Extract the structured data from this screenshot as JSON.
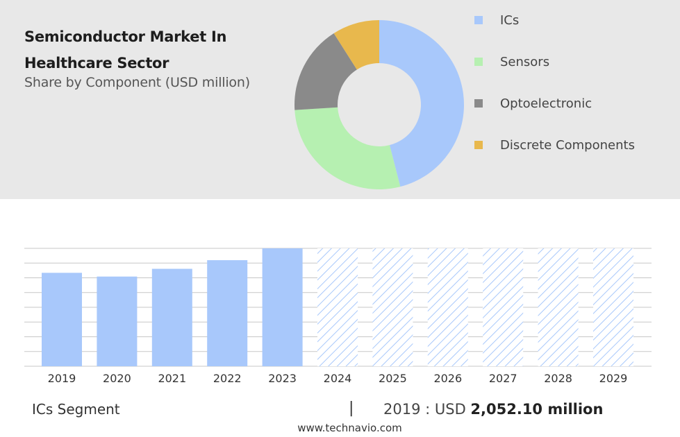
{
  "header": {
    "title_line1": "Semiconductor Market In",
    "title_line2": "Healthcare Sector",
    "subtitle": "Share by Component (USD million)"
  },
  "colors": {
    "ics": "#a8c8fb",
    "sensors": "#b6f0b1",
    "optoelectronic": "#8a8a8a",
    "discrete": "#e8b84d",
    "forecast_hatch": "#a8c8fb",
    "grid": "#c7c7c7"
  },
  "chart_data": [
    {
      "type": "pie",
      "donut": true,
      "title": "Share by Component (USD million)",
      "categories": [
        "ICs",
        "Sensors",
        "Optoelectronic",
        "Discrete Components"
      ],
      "values": [
        46,
        28,
        17,
        9
      ],
      "colors": [
        "#a8c8fb",
        "#b6f0b1",
        "#8a8a8a",
        "#e8b84d"
      ],
      "legend": "right"
    },
    {
      "type": "bar",
      "categories": [
        "2019",
        "2020",
        "2021",
        "2022",
        "2023",
        "2024",
        "2025",
        "2026",
        "2027",
        "2028",
        "2029"
      ],
      "values": [
        2052.1,
        1970,
        2140,
        2330,
        2590,
        null,
        null,
        null,
        null,
        null,
        null
      ],
      "forecast_categories": [
        "2024",
        "2025",
        "2026",
        "2027",
        "2028",
        "2029"
      ],
      "ylim": [
        0,
        2590
      ],
      "grid": true,
      "xlabel": "",
      "ylabel": ""
    }
  ],
  "footer": {
    "segment": "ICs Segment",
    "separator": "|",
    "stat_prefix": "2019 : USD ",
    "stat_value": "2,052.10 million",
    "source": "www.technavio.com"
  }
}
